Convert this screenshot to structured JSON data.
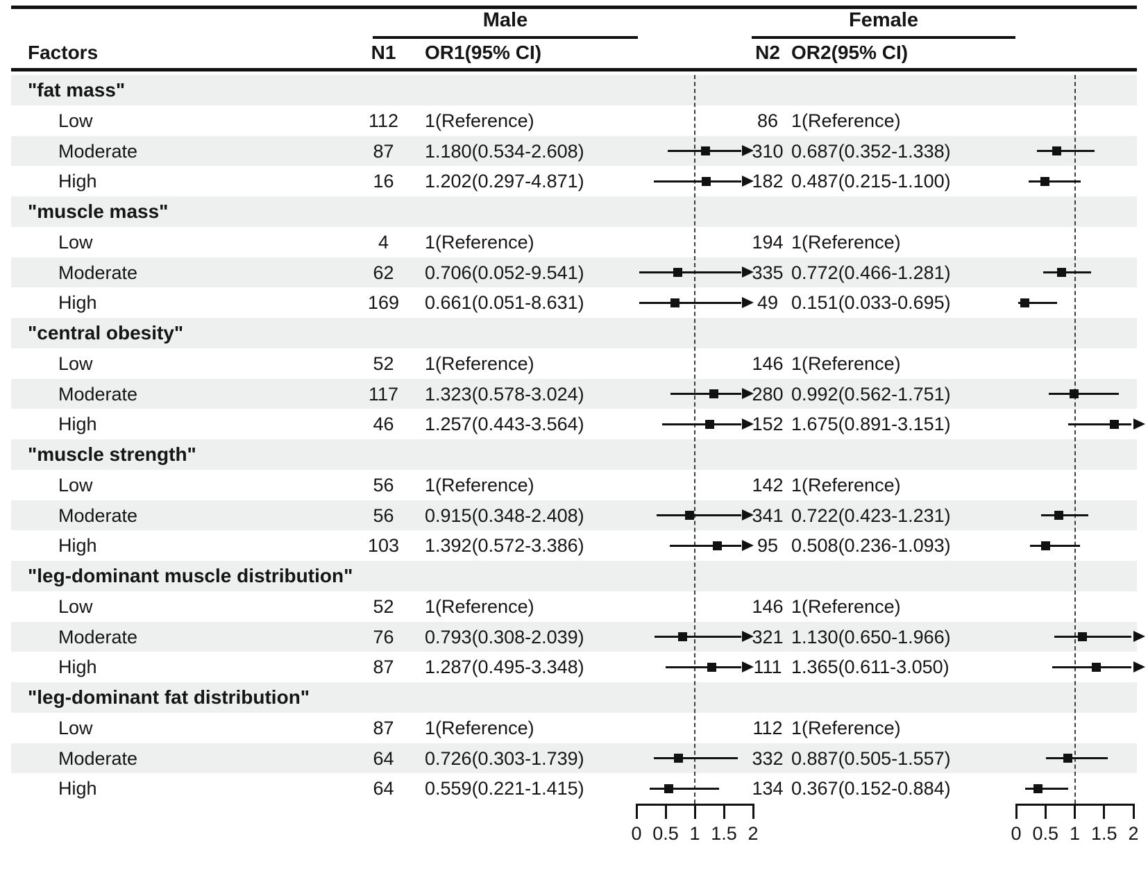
{
  "header": {
    "factors_label": "Factors"
  },
  "axis": {
    "tick_labels": [
      "0",
      "0.5",
      "1",
      "1.5",
      "2"
    ]
  },
  "chart_data": {
    "type": "forest_plot",
    "title": "",
    "groups": [
      {
        "name": "Male",
        "n_col": "N1",
        "or_col": "OR1(95% CI)"
      },
      {
        "name": "Female",
        "n_col": "N2",
        "or_col": "OR2(95% CI)"
      }
    ],
    "x_axis": {
      "range": [
        0,
        2
      ],
      "ticks": [
        0,
        0.5,
        1,
        1.5,
        2
      ],
      "reference_line": 1,
      "grid": false
    },
    "sections": [
      {
        "name": "\"fat mass\"",
        "rows": [
          {
            "label": "Low",
            "n1": "112",
            "or1": "1(Reference)",
            "n2": "86",
            "or2": "1(Reference)",
            "male": null,
            "female": null
          },
          {
            "label": "Moderate",
            "n1": "87",
            "or1": "1.180(0.534-2.608)",
            "n2": "310",
            "or2": "0.687(0.352-1.338)",
            "male": {
              "or": 1.18,
              "lo": 0.534,
              "hi": 2.608,
              "arrow": true
            },
            "female": {
              "or": 0.687,
              "lo": 0.352,
              "hi": 1.338,
              "arrow": false
            }
          },
          {
            "label": "High",
            "n1": "16",
            "or1": "1.202(0.297-4.871)",
            "n2": "182",
            "or2": "0.487(0.215-1.100)",
            "male": {
              "or": 1.202,
              "lo": 0.297,
              "hi": 4.871,
              "arrow": true
            },
            "female": {
              "or": 0.487,
              "lo": 0.215,
              "hi": 1.1,
              "arrow": false
            }
          }
        ]
      },
      {
        "name": "\"muscle mass\"",
        "rows": [
          {
            "label": "Low",
            "n1": "4",
            "or1": "1(Reference)",
            "n2": "194",
            "or2": "1(Reference)",
            "male": null,
            "female": null
          },
          {
            "label": "Moderate",
            "n1": "62",
            "or1": "0.706(0.052-9.541)",
            "n2": "335",
            "or2": "0.772(0.466-1.281)",
            "male": {
              "or": 0.706,
              "lo": 0.052,
              "hi": 9.541,
              "arrow": true
            },
            "female": {
              "or": 0.772,
              "lo": 0.466,
              "hi": 1.281,
              "arrow": false
            }
          },
          {
            "label": "High",
            "n1": "169",
            "or1": "0.661(0.051-8.631)",
            "n2": "49",
            "or2": "0.151(0.033-0.695)",
            "male": {
              "or": 0.661,
              "lo": 0.051,
              "hi": 8.631,
              "arrow": true
            },
            "female": {
              "or": 0.151,
              "lo": 0.033,
              "hi": 0.695,
              "arrow": false
            }
          }
        ]
      },
      {
        "name": "\"central obesity\"",
        "rows": [
          {
            "label": "Low",
            "n1": "52",
            "or1": "1(Reference)",
            "n2": "146",
            "or2": "1(Reference)",
            "male": null,
            "female": null
          },
          {
            "label": "Moderate",
            "n1": "117",
            "or1": "1.323(0.578-3.024)",
            "n2": "280",
            "or2": "0.992(0.562-1.751)",
            "male": {
              "or": 1.323,
              "lo": 0.578,
              "hi": 3.024,
              "arrow": true
            },
            "female": {
              "or": 0.992,
              "lo": 0.562,
              "hi": 1.751,
              "arrow": false
            }
          },
          {
            "label": "High",
            "n1": "46",
            "or1": "1.257(0.443-3.564)",
            "n2": "152",
            "or2": "1.675(0.891-3.151)",
            "male": {
              "or": 1.257,
              "lo": 0.443,
              "hi": 3.564,
              "arrow": true
            },
            "female": {
              "or": 1.675,
              "lo": 0.891,
              "hi": 3.151,
              "arrow": true
            }
          }
        ]
      },
      {
        "name": "\"muscle strength\"",
        "rows": [
          {
            "label": "Low",
            "n1": "56",
            "or1": "1(Reference)",
            "n2": "142",
            "or2": "1(Reference)",
            "male": null,
            "female": null
          },
          {
            "label": "Moderate",
            "n1": "56",
            "or1": "0.915(0.348-2.408)",
            "n2": "341",
            "or2": "0.722(0.423-1.231)",
            "male": {
              "or": 0.915,
              "lo": 0.348,
              "hi": 2.408,
              "arrow": true
            },
            "female": {
              "or": 0.722,
              "lo": 0.423,
              "hi": 1.231,
              "arrow": false
            }
          },
          {
            "label": "High",
            "n1": "103",
            "or1": "1.392(0.572-3.386)",
            "n2": "95",
            "or2": "0.508(0.236-1.093)",
            "male": {
              "or": 1.392,
              "lo": 0.572,
              "hi": 3.386,
              "arrow": true
            },
            "female": {
              "or": 0.508,
              "lo": 0.236,
              "hi": 1.093,
              "arrow": false
            }
          }
        ]
      },
      {
        "name": "\"leg-dominant muscle distribution\"",
        "rows": [
          {
            "label": "Low",
            "n1": "52",
            "or1": "1(Reference)",
            "n2": "146",
            "or2": "1(Reference)",
            "male": null,
            "female": null
          },
          {
            "label": "Moderate",
            "n1": "76",
            "or1": "0.793(0.308-2.039)",
            "n2": "321",
            "or2": "1.130(0.650-1.966)",
            "male": {
              "or": 0.793,
              "lo": 0.308,
              "hi": 2.039,
              "arrow": true
            },
            "female": {
              "or": 1.13,
              "lo": 0.65,
              "hi": 1.966,
              "arrow": true
            }
          },
          {
            "label": "High",
            "n1": "87",
            "or1": "1.287(0.495-3.348)",
            "n2": "111",
            "or2": "1.365(0.611-3.050)",
            "male": {
              "or": 1.287,
              "lo": 0.495,
              "hi": 3.348,
              "arrow": true
            },
            "female": {
              "or": 1.365,
              "lo": 0.611,
              "hi": 3.05,
              "arrow": true
            }
          }
        ]
      },
      {
        "name": "\"leg-dominant fat distribution\"",
        "rows": [
          {
            "label": "Low",
            "n1": "87",
            "or1": "1(Reference)",
            "n2": "112",
            "or2": "1(Reference)",
            "male": null,
            "female": null
          },
          {
            "label": "Moderate",
            "n1": "64",
            "or1": "0.726(0.303-1.739)",
            "n2": "332",
            "or2": "0.887(0.505-1.557)",
            "male": {
              "or": 0.726,
              "lo": 0.303,
              "hi": 1.739,
              "arrow": false
            },
            "female": {
              "or": 0.887,
              "lo": 0.505,
              "hi": 1.557,
              "arrow": false
            }
          },
          {
            "label": "High",
            "n1": "64",
            "or1": "0.559(0.221-1.415)",
            "n2": "134",
            "or2": "0.367(0.152-0.884)",
            "male": {
              "or": 0.559,
              "lo": 0.221,
              "hi": 1.415,
              "arrow": false
            },
            "female": {
              "or": 0.367,
              "lo": 0.152,
              "hi": 0.884,
              "arrow": false
            }
          }
        ]
      }
    ]
  }
}
